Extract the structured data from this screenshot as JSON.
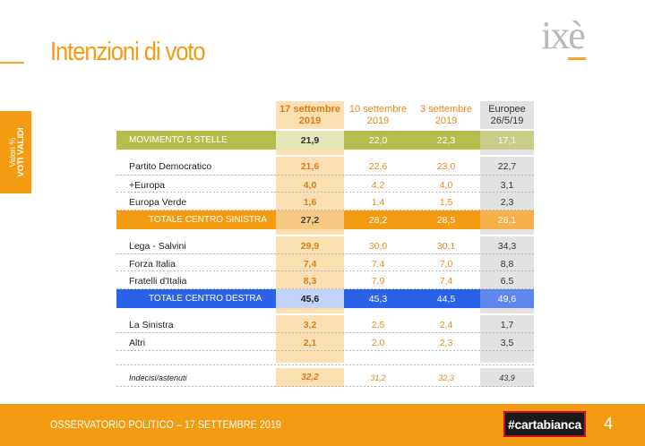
{
  "header": {
    "title": "Intenzioni di voto",
    "logo_text": "ixè"
  },
  "side_tab": {
    "line1": "Valori %",
    "line2": "VOTI VALIDI"
  },
  "columns": [
    "17 settembre 2019",
    "10 settembre 2019",
    "3 settembre 2019",
    "Europee 26/5/19"
  ],
  "column_lines": [
    [
      "17 settembre",
      "2019"
    ],
    [
      "10 settembre",
      "2019"
    ],
    [
      "3 settembre",
      "2019"
    ],
    [
      "Europee",
      "26/5/19"
    ]
  ],
  "rows": [
    {
      "label": "MOVIMENTO 5 STELLE",
      "values": [
        "21,9",
        "22,0",
        "22,3",
        "17,1"
      ]
    },
    {
      "label": "Partito Democratico",
      "values": [
        "21,6",
        "22,6",
        "23,0",
        "22,7"
      ]
    },
    {
      "label": "+Europa",
      "values": [
        "4,0",
        "4,2",
        "4,0",
        "3,1"
      ]
    },
    {
      "label": "Europa Verde",
      "values": [
        "1,6",
        "1,4",
        "1,5",
        "2,3"
      ]
    },
    {
      "label": "TOTALE CENTRO SINISTRA",
      "values": [
        "27,2",
        "28,2",
        "28,5",
        "28,1"
      ]
    },
    {
      "label": "Lega - Salvini",
      "values": [
        "29,9",
        "30,0",
        "30,1",
        "34,3"
      ]
    },
    {
      "label": "Forza Italia",
      "values": [
        "7,4",
        "7,4",
        "7,0",
        "8,8"
      ]
    },
    {
      "label": "Fratelli d'Italia",
      "values": [
        "8,3",
        "7,9",
        "7,4",
        "6,5"
      ]
    },
    {
      "label": "TOTALE CENTRO DESTRA",
      "values": [
        "45,6",
        "45,3",
        "44,5",
        "49,6"
      ]
    },
    {
      "label": "La Sinistra",
      "values": [
        "3,2",
        "2,5",
        "2,4",
        "1,7"
      ]
    },
    {
      "label": "Altri",
      "values": [
        "2,1",
        "2,0",
        "2,3",
        "3,5"
      ]
    },
    {
      "label": "Indecisi/astenuti",
      "values": [
        "32,2",
        "31,2",
        "32,3",
        "43,9"
      ]
    }
  ],
  "footer": {
    "text": "OSSERVATORIO POLITICO – 17 SETTEMBRE 2019",
    "badge": "#cartabianca",
    "page": "4"
  },
  "colors": {
    "accent_orange": "#f39c12",
    "m5s_olive": "#b7bd4d",
    "centrodestra_blue": "#2a62e8",
    "badge_black": "#1a1a1a"
  }
}
